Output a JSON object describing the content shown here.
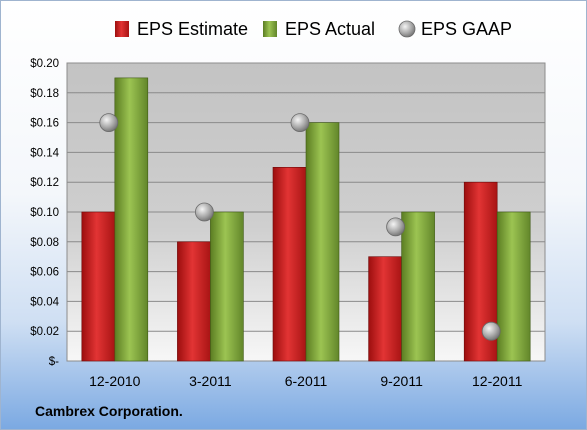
{
  "chart_data": {
    "type": "bar",
    "categories": [
      "12-2010",
      "3-2011",
      "6-2011",
      "9-2011",
      "12-2011"
    ],
    "series": [
      {
        "name": "EPS Estimate",
        "type": "bar",
        "color": "#cc1f1f",
        "values": [
          0.1,
          0.08,
          0.13,
          0.07,
          0.12
        ]
      },
      {
        "name": "EPS Actual",
        "type": "bar",
        "color": "#7ea63a",
        "values": [
          0.19,
          0.1,
          0.16,
          0.1,
          0.1
        ]
      },
      {
        "name": "EPS GAAP",
        "type": "scatter",
        "color": "#a9a9a9",
        "values": [
          0.16,
          0.1,
          0.16,
          0.09,
          0.02
        ]
      }
    ],
    "yticks": [
      "$-",
      "$0.02",
      "$0.04",
      "$0.06",
      "$0.08",
      "$0.10",
      "$0.12",
      "$0.14",
      "$0.16",
      "$0.18",
      "$0.20"
    ],
    "ylim": [
      0,
      0.2
    ],
    "grid": true,
    "legend_position": "top"
  },
  "footer": {
    "company": "Cambrex Corporation."
  }
}
